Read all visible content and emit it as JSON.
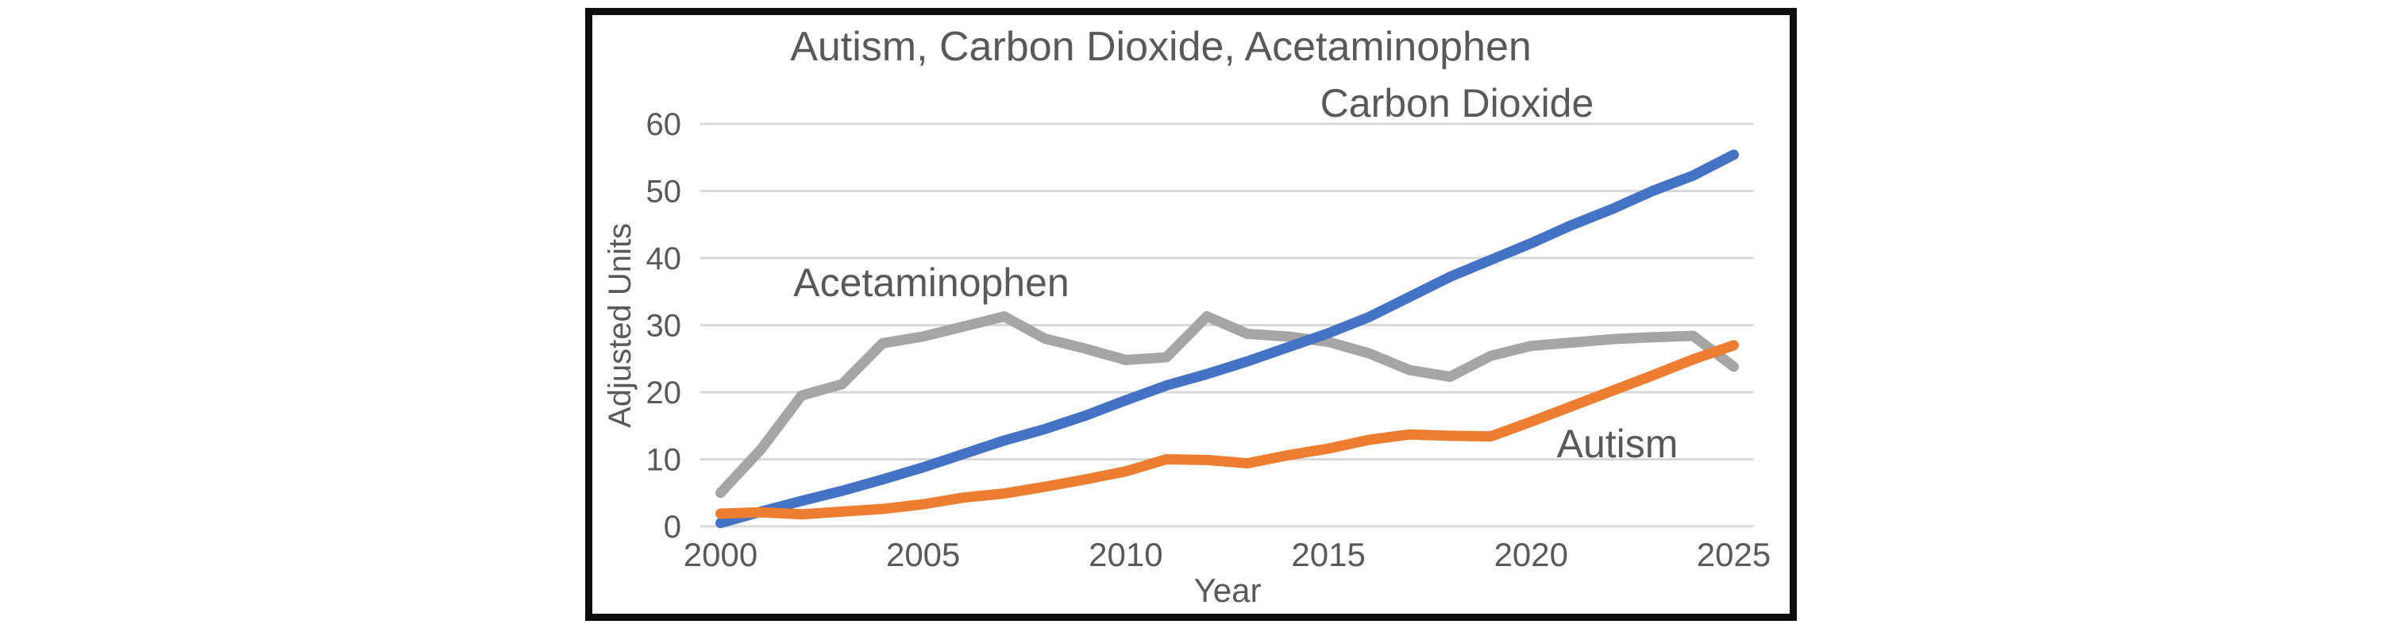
{
  "frame": {
    "background": "#ffffff",
    "border_color": "#0d0d0d",
    "border_width": 9
  },
  "chart_data": {
    "type": "line",
    "title": "Autism, Carbon Dioxide, Acetaminophen",
    "xlabel": "Year",
    "ylabel": "Adjusted Units",
    "x": [
      2000,
      2001,
      2002,
      2003,
      2004,
      2005,
      2006,
      2007,
      2008,
      2009,
      2010,
      2011,
      2012,
      2013,
      2014,
      2015,
      2016,
      2017,
      2018,
      2019,
      2020,
      2021,
      2022,
      2023,
      2024,
      2025
    ],
    "x_tick_labels": [
      "2000",
      "2005",
      "2010",
      "2015",
      "2020",
      "2025"
    ],
    "y_ticks": [
      0,
      10,
      20,
      30,
      40,
      50,
      60
    ],
    "ylim": [
      0,
      60
    ],
    "grid": true,
    "gridline_color": "#d9d9d9",
    "text_color": "#595959",
    "legend_style": "inline-series-labels",
    "series": [
      {
        "name": "Acetaminophen",
        "color": "#a5a5a5",
        "values": [
          5.0,
          11.5,
          19.5,
          21.2,
          27.3,
          28.3,
          29.8,
          31.3,
          28.0,
          26.5,
          24.8,
          25.2,
          31.3,
          28.7,
          28.3,
          27.5,
          25.8,
          23.3,
          22.3,
          25.4,
          26.9,
          27.4,
          27.9,
          28.2,
          28.4,
          23.8
        ],
        "label_pos": {
          "x": 1173,
          "y": 373
        }
      },
      {
        "name": "Carbon Dioxide",
        "color": "#4472c4",
        "values": [
          0.5,
          2.2,
          3.8,
          5.3,
          7.0,
          8.8,
          10.8,
          12.8,
          14.5,
          16.5,
          18.8,
          21.0,
          22.7,
          24.6,
          26.7,
          28.8,
          31.2,
          34.2,
          37.2,
          39.7,
          42.2,
          44.9,
          47.3,
          50.0,
          52.3,
          55.4
        ],
        "label_pos": {
          "x": 1835,
          "y": 147
        }
      },
      {
        "name": "Autism",
        "color": "#ed7d31",
        "values": [
          1.9,
          2.1,
          1.8,
          2.2,
          2.6,
          3.3,
          4.3,
          4.9,
          5.9,
          7.0,
          8.2,
          10.0,
          9.9,
          9.4,
          10.6,
          11.6,
          12.9,
          13.7,
          13.5,
          13.4,
          15.6,
          17.9,
          20.2,
          22.5,
          24.9,
          27.0
        ],
        "label_pos": {
          "x": 2037,
          "y": 576
        }
      }
    ]
  }
}
